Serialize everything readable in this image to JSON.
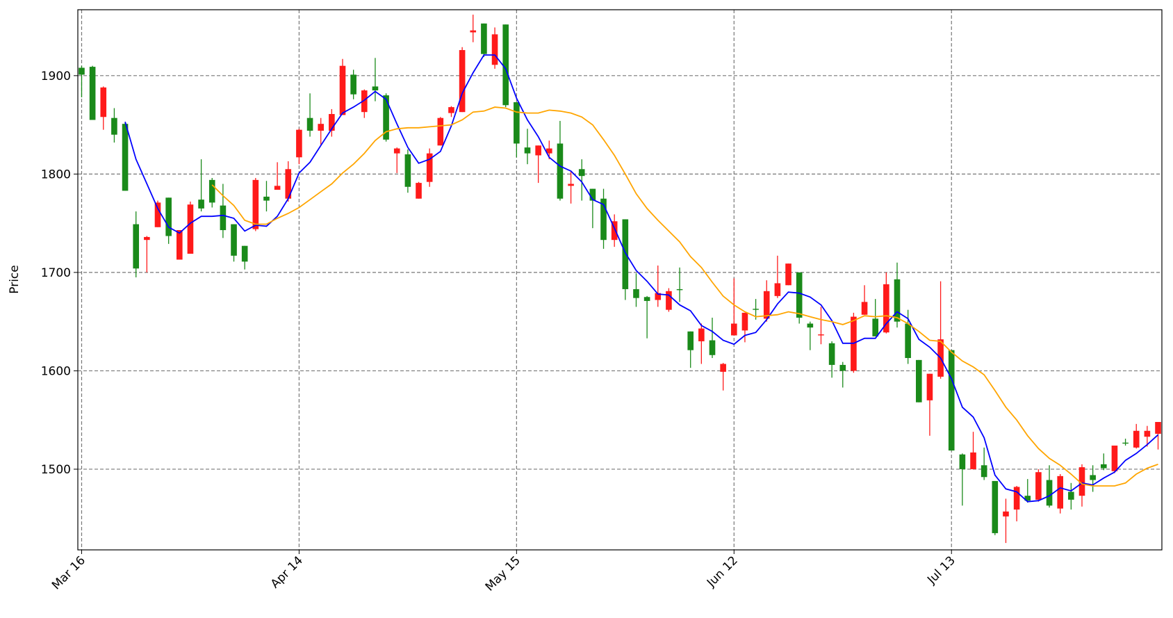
{
  "chart_data": {
    "type": "candlestick",
    "y_label": "Price",
    "categories": [
      "Mar 16",
      null,
      null,
      null,
      null,
      null,
      null,
      null,
      null,
      null,
      null,
      null,
      null,
      null,
      null,
      null,
      null,
      null,
      null,
      null,
      "Apr 14",
      null,
      null,
      null,
      null,
      null,
      null,
      null,
      null,
      null,
      null,
      null,
      null,
      null,
      null,
      null,
      null,
      null,
      null,
      null,
      "May 15",
      null,
      null,
      null,
      null,
      null,
      null,
      null,
      null,
      null,
      null,
      null,
      null,
      null,
      null,
      null,
      null,
      null,
      null,
      null,
      "Jun 12",
      null,
      null,
      null,
      null,
      null,
      null,
      null,
      null,
      null,
      null,
      null,
      null,
      null,
      null,
      null,
      null,
      null,
      null,
      null,
      "Jul 13",
      null,
      null,
      null,
      null,
      null,
      null,
      null,
      null,
      null,
      null,
      null,
      null,
      null,
      null,
      null,
      null,
      null,
      null,
      null
    ],
    "open": [
      1908,
      1909,
      1858,
      1857,
      1851,
      1749,
      1733,
      1746,
      1776,
      1713,
      1719,
      1774,
      1794,
      1768,
      1749,
      1727,
      1744,
      1777,
      1784,
      1775,
      1817,
      1857,
      1844,
      1844,
      1860,
      1901,
      1863,
      1889,
      1880,
      1821,
      1820,
      1775,
      1792,
      1829,
      1862,
      1863,
      1944,
      1953,
      1911,
      1952,
      1873,
      1827,
      1819,
      1821,
      1831,
      1788,
      1805,
      1785,
      1775,
      1733,
      1754,
      1683,
      1675,
      1672,
      1662,
      1683,
      1640,
      1630,
      1631,
      1599,
      1636,
      1641,
      1663,
      1653,
      1676,
      1687,
      1700,
      1648,
      1636,
      1628,
      1606,
      1600,
      1657,
      1653,
      1639,
      1693,
      1648,
      1611,
      1570,
      1594,
      1621,
      1515,
      1500,
      1504,
      1488,
      1452,
      1459,
      1473,
      1469,
      1489,
      1460,
      1477,
      1473,
      1494,
      1505,
      1498,
      1527,
      1522,
      1533,
      1536
    ],
    "high": [
      1910,
      1910,
      1889,
      1867,
      1853,
      1762,
      1737,
      1773,
      1776,
      1743,
      1772,
      1815,
      1796,
      1790,
      1749,
      1727,
      1796,
      1793,
      1812,
      1813,
      1846,
      1882,
      1857,
      1866,
      1917,
      1906,
      1886,
      1918,
      1882,
      1827,
      1825,
      1792,
      1826,
      1858,
      1869,
      1929,
      1962,
      1953,
      1949,
      1952,
      1873,
      1846,
      1829,
      1834,
      1854,
      1803,
      1815,
      1785,
      1785,
      1759,
      1754,
      1699,
      1676,
      1707,
      1684,
      1705,
      1640,
      1648,
      1654,
      1608,
      1694,
      1659,
      1673,
      1692,
      1717,
      1709,
      1700,
      1650,
      1665,
      1630,
      1609,
      1659,
      1687,
      1673,
      1700,
      1710,
      1662,
      1611,
      1597,
      1691,
      1621,
      1516,
      1538,
      1522,
      1488,
      1470,
      1483,
      1490,
      1500,
      1504,
      1495,
      1486,
      1505,
      1504,
      1516,
      1524,
      1531,
      1546,
      1544,
      1548
    ],
    "low": [
      1878,
      1855,
      1845,
      1832,
      1783,
      1695,
      1700,
      1746,
      1729,
      1713,
      1719,
      1762,
      1766,
      1735,
      1711,
      1703,
      1742,
      1762,
      1784,
      1772,
      1810,
      1838,
      1830,
      1838,
      1860,
      1876,
      1857,
      1874,
      1833,
      1801,
      1781,
      1775,
      1787,
      1829,
      1858,
      1863,
      1934,
      1919,
      1907,
      1868,
      1817,
      1810,
      1791,
      1815,
      1773,
      1770,
      1773,
      1745,
      1724,
      1726,
      1672,
      1665,
      1633,
      1665,
      1660,
      1670,
      1603,
      1607,
      1613,
      1580,
      1636,
      1629,
      1652,
      1650,
      1674,
      1687,
      1648,
      1621,
      1627,
      1593,
      1583,
      1598,
      1657,
      1635,
      1638,
      1644,
      1607,
      1568,
      1534,
      1592,
      1519,
      1463,
      1500,
      1489,
      1433,
      1425,
      1447,
      1466,
      1467,
      1461,
      1455,
      1459,
      1462,
      1477,
      1499,
      1496,
      1524,
      1521,
      1523,
      1520
    ],
    "close": [
      1901,
      1855,
      1888,
      1840,
      1783,
      1704,
      1736,
      1771,
      1737,
      1743,
      1769,
      1765,
      1771,
      1743,
      1717,
      1711,
      1794,
      1773,
      1788,
      1805,
      1845,
      1844,
      1851,
      1861,
      1910,
      1881,
      1885,
      1885,
      1835,
      1826,
      1787,
      1791,
      1821,
      1857,
      1868,
      1926,
      1946,
      1922,
      1942,
      1870,
      1831,
      1821,
      1829,
      1826,
      1775,
      1790,
      1798,
      1773,
      1733,
      1752,
      1683,
      1674,
      1671,
      1679,
      1681,
      1682,
      1621,
      1643,
      1616,
      1607,
      1648,
      1659,
      1662,
      1681,
      1689,
      1709,
      1654,
      1644,
      1637,
      1606,
      1600,
      1655,
      1670,
      1635,
      1688,
      1650,
      1613,
      1568,
      1597,
      1632,
      1519,
      1500,
      1517,
      1492,
      1435,
      1457,
      1482,
      1468,
      1497,
      1463,
      1493,
      1469,
      1502,
      1489,
      1501,
      1524,
      1526,
      1539,
      1539,
      1548
    ],
    "up_color": "#ff1a1a",
    "down_color": "#1a8a1a",
    "series": [
      {
        "color": "#0000ff",
        "values": [
          null,
          null,
          null,
          null,
          1853,
          1815,
          1790,
          1765,
          1746,
          1740,
          1750,
          1757,
          1757,
          1758,
          1755,
          1742,
          1748,
          1747,
          1757,
          1775,
          1801,
          1812,
          1829,
          1846,
          1862,
          1868,
          1875,
          1884,
          1876,
          1851,
          1827,
          1811,
          1815,
          1823,
          1849,
          1882,
          1903,
          1921,
          1921,
          1907,
          1877,
          1855,
          1838,
          1817,
          1808,
          1803,
          1792,
          1774,
          1769,
          1745,
          1720,
          1702,
          1691,
          1678,
          1677,
          1667,
          1661,
          1646,
          1640,
          1631,
          1627,
          1636,
          1639,
          1652,
          1668,
          1680,
          1679,
          1675,
          1667,
          1651,
          1628,
          1628,
          1633,
          1633,
          1648,
          1660,
          1653,
          1632,
          1624,
          1613,
          1592,
          1563,
          1553,
          1532,
          1494,
          1480,
          1477,
          1467,
          1468,
          1473,
          1481,
          1478,
          1486,
          1484,
          1491,
          1497,
          1509,
          1516,
          1525,
          1535
        ]
      },
      {
        "color": "#ffa500",
        "values": [
          null,
          null,
          null,
          null,
          null,
          null,
          null,
          null,
          null,
          null,
          null,
          null,
          1789,
          1778,
          1768,
          1753,
          1749,
          1749,
          1755,
          1760,
          1766,
          1774,
          1782,
          1790,
          1801,
          1810,
          1821,
          1834,
          1843,
          1846,
          1847,
          1847,
          1848,
          1849,
          1850,
          1855,
          1863,
          1864,
          1868,
          1867,
          1863,
          1862,
          1862,
          1865,
          1864,
          1862,
          1858,
          1850,
          1835,
          1819,
          1800,
          1780,
          1765,
          1753,
          1742,
          1731,
          1716,
          1705,
          1690,
          1676,
          1667,
          1660,
          1655,
          1656,
          1657,
          1660,
          1658,
          1655,
          1652,
          1650,
          1647,
          1651,
          1656,
          1655,
          1656,
          1654,
          1648,
          1640,
          1631,
          1630,
          1619,
          1610,
          1604,
          1596,
          1580,
          1563,
          1550,
          1534,
          1521,
          1511,
          1504,
          1495,
          1485,
          1483,
          1483,
          1483,
          1486,
          1495,
          1501,
          1505
        ]
      }
    ],
    "ylim": [
      1418,
      1967
    ],
    "yticks": [
      1500,
      1600,
      1700,
      1800,
      1900
    ],
    "grid": true
  }
}
